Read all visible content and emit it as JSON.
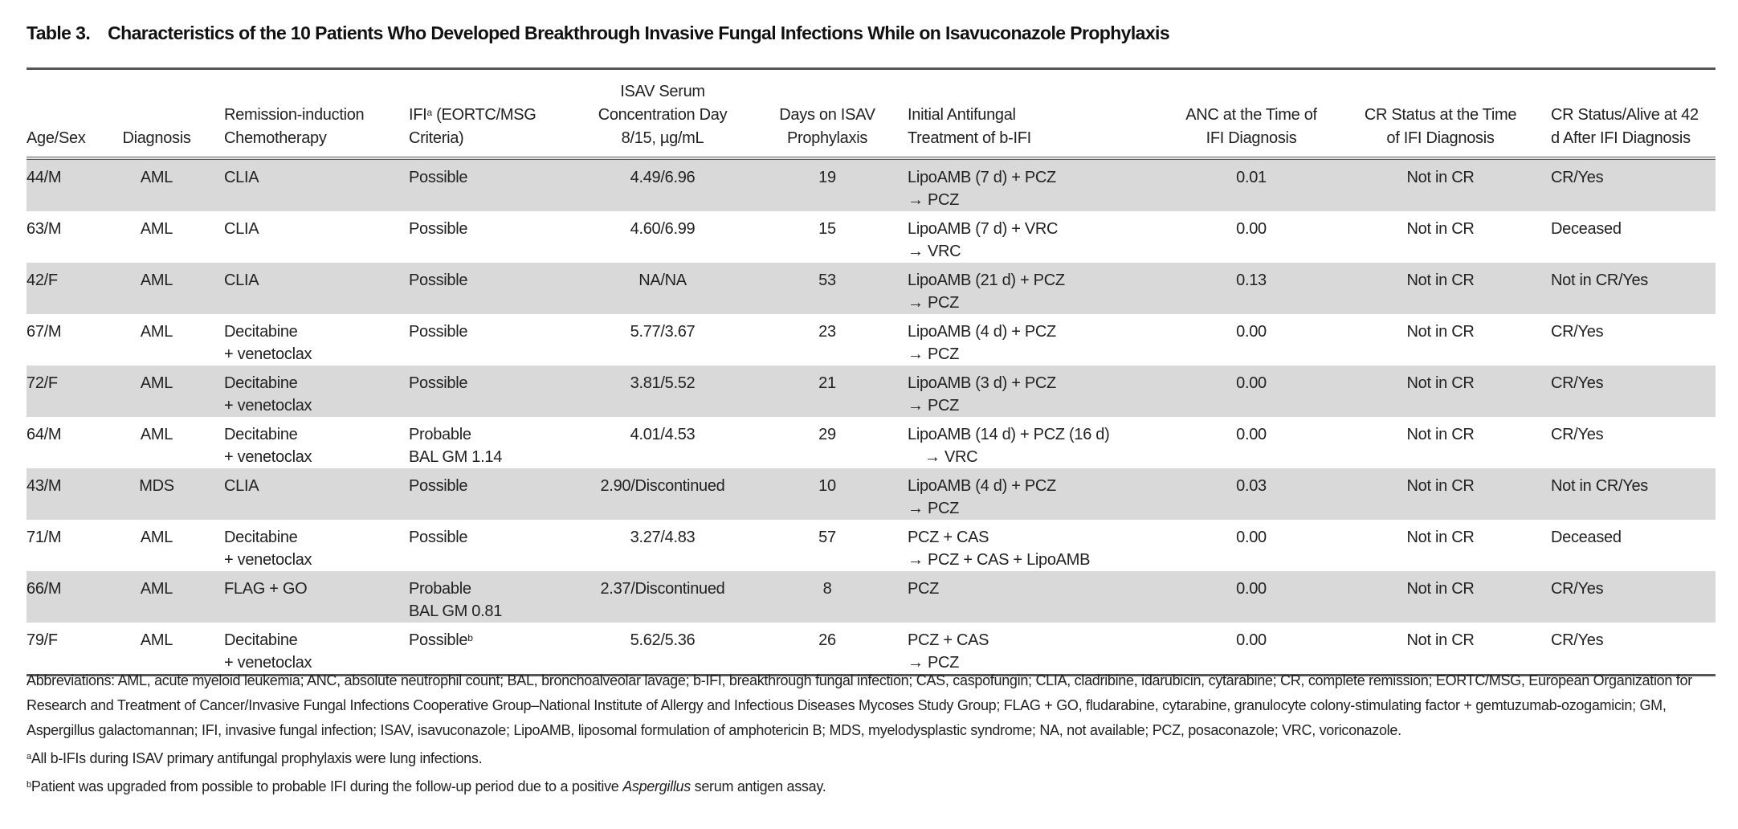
{
  "title": {
    "number": "Table 3.",
    "text": "Characteristics of the 10 Patients Who Developed Breakthrough Invasive Fungal Infections While on Isavuconazole Prophylaxis"
  },
  "headers": [
    {
      "lines": [
        "Age/Sex"
      ]
    },
    {
      "lines": [
        "Diagnosis"
      ]
    },
    {
      "lines": [
        "Remission-induction",
        "Chemotherapy"
      ]
    },
    {
      "lines": [
        "IFI",
        "(EORTC/MSG",
        "Criteria)"
      ],
      "sup": "a"
    },
    {
      "lines": [
        "ISAV Serum",
        "Concentration Day",
        "8/15, µg/mL"
      ]
    },
    {
      "lines": [
        "Days on ISAV",
        "Prophylaxis"
      ]
    },
    {
      "lines": [
        "Initial Antifungal",
        "Treatment of b-IFI"
      ]
    },
    {
      "lines": [
        "ANC at the Time of",
        "IFI Diagnosis"
      ]
    },
    {
      "lines": [
        "CR Status at the Time",
        "of IFI Diagnosis"
      ]
    },
    {
      "lines": [
        "CR Status/Alive at 42",
        "d After IFI Diagnosis"
      ]
    }
  ],
  "rows": [
    {
      "age_sex": "44/M",
      "diagnosis": "AML",
      "chemo": [
        "CLIA"
      ],
      "ifi": [
        "Possible"
      ],
      "ifi_sup": "",
      "isav": "4.49/6.96",
      "days": "19",
      "treatment": [
        "LipoAMB (7 d) + PCZ",
        "→ PCZ"
      ],
      "anc": "0.01",
      "cr_time": "Not in CR",
      "cr_alive": "CR/Yes"
    },
    {
      "age_sex": "63/M",
      "diagnosis": "AML",
      "chemo": [
        "CLIA"
      ],
      "ifi": [
        "Possible"
      ],
      "ifi_sup": "",
      "isav": "4.60/6.99",
      "days": "15",
      "treatment": [
        "LipoAMB (7 d) + VRC",
        "→ VRC"
      ],
      "anc": "0.00",
      "cr_time": "Not in CR",
      "cr_alive": "Deceased"
    },
    {
      "age_sex": "42/F",
      "diagnosis": "AML",
      "chemo": [
        "CLIA"
      ],
      "ifi": [
        "Possible"
      ],
      "ifi_sup": "",
      "isav": "NA/NA",
      "days": "53",
      "treatment": [
        "LipoAMB (21 d) + PCZ",
        "→ PCZ"
      ],
      "anc": "0.13",
      "cr_time": "Not in CR",
      "cr_alive": "Not in CR/Yes"
    },
    {
      "age_sex": "67/M",
      "diagnosis": "AML",
      "chemo": [
        "Decitabine",
        "+ venetoclax"
      ],
      "ifi": [
        "Possible"
      ],
      "ifi_sup": "",
      "isav": "5.77/3.67",
      "days": "23",
      "treatment": [
        "LipoAMB (4 d) + PCZ",
        "→ PCZ"
      ],
      "anc": "0.00",
      "cr_time": "Not in CR",
      "cr_alive": "CR/Yes"
    },
    {
      "age_sex": "72/F",
      "diagnosis": "AML",
      "chemo": [
        "Decitabine",
        "+ venetoclax"
      ],
      "ifi": [
        "Possible"
      ],
      "ifi_sup": "",
      "isav": "3.81/5.52",
      "days": "21",
      "treatment": [
        "LipoAMB (3 d) + PCZ",
        "→ PCZ"
      ],
      "anc": "0.00",
      "cr_time": "Not in CR",
      "cr_alive": "CR/Yes"
    },
    {
      "age_sex": "64/M",
      "diagnosis": "AML",
      "chemo": [
        "Decitabine",
        "+ venetoclax"
      ],
      "ifi": [
        "Probable",
        "BAL GM 1.14"
      ],
      "ifi_sup": "",
      "isav": "4.01/4.53",
      "days": "29",
      "treatment": [
        "LipoAMB (14 d) + PCZ (16 d)",
        "    → VRC"
      ],
      "anc": "0.00",
      "cr_time": "Not in CR",
      "cr_alive": "CR/Yes"
    },
    {
      "age_sex": "43/M",
      "diagnosis": "MDS",
      "chemo": [
        "CLIA"
      ],
      "ifi": [
        "Possible"
      ],
      "ifi_sup": "",
      "isav": "2.90/Discontinued",
      "days": "10",
      "treatment": [
        "LipoAMB (4 d) + PCZ",
        "→ PCZ"
      ],
      "anc": "0.03",
      "cr_time": "Not in CR",
      "cr_alive": "Not in CR/Yes"
    },
    {
      "age_sex": "71/M",
      "diagnosis": "AML",
      "chemo": [
        "Decitabine",
        "+ venetoclax"
      ],
      "ifi": [
        "Possible"
      ],
      "ifi_sup": "",
      "isav": "3.27/4.83",
      "days": "57",
      "treatment": [
        "PCZ + CAS",
        "→ PCZ + CAS + LipoAMB"
      ],
      "anc": "0.00",
      "cr_time": "Not in CR",
      "cr_alive": "Deceased"
    },
    {
      "age_sex": "66/M",
      "diagnosis": "AML",
      "chemo": [
        "FLAG + GO"
      ],
      "ifi": [
        "Probable",
        "BAL GM 0.81"
      ],
      "ifi_sup": "",
      "isav": "2.37/Discontinued",
      "days": "8",
      "treatment": [
        "PCZ"
      ],
      "anc": "0.00",
      "cr_time": "Not in CR",
      "cr_alive": "CR/Yes"
    },
    {
      "age_sex": "79/F",
      "diagnosis": "AML",
      "chemo": [
        "Decitabine",
        "+ venetoclax"
      ],
      "ifi": [
        "Possible"
      ],
      "ifi_sup": "b",
      "isav": "5.62/5.36",
      "days": "26",
      "treatment": [
        "PCZ + CAS",
        "→ PCZ"
      ],
      "anc": "0.00",
      "cr_time": "Not in CR",
      "cr_alive": "CR/Yes"
    }
  ],
  "footnotes": {
    "abbreviations": "Abbreviations: AML, acute myeloid leukemia; ANC, absolute neutrophil count; BAL, bronchoalveolar lavage; b-IFI, breakthrough fungal infection; CAS, caspofungin; CLIA, cladribine, idarubicin, cytarabine; CR, complete remission; EORTC/MSG, European Organization for Research and Treatment of Cancer/Invasive Fungal Infections Cooperative Group–National Institute of Allergy and Infectious Diseases Mycoses Study Group; FLAG + GO, fludarabine, cytarabine, granulocyte colony-stimulating factor + gemtuzumab-ozogamicin; GM, Aspergillus galactomannan; IFI, invasive fungal infection; ISAV, isavuconazole; LipoAMB, liposomal formulation of amphotericin B; MDS, myelodysplastic syndrome; NA, not available; PCZ, posaconazole; VRC, voriconazole.",
    "a": {
      "mark": "a",
      "text": "All b-IFIs during ISAV primary antifungal prophylaxis were lung infections."
    },
    "b": {
      "mark": "b",
      "text_before": "Patient was upgraded from possible to probable IFI during the follow-up period due to a positive ",
      "italic": "Aspergillus",
      "text_after": " serum antigen assay."
    }
  }
}
